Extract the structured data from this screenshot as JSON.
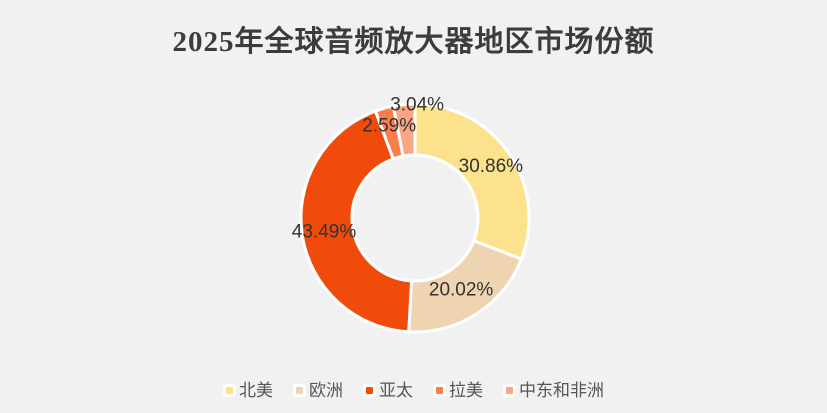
{
  "page": {
    "background": "#F1F1F1"
  },
  "header": {
    "title": "2025年全球音频放大器地区市场份额",
    "title_color": "#3C3C3C"
  },
  "chart_data": {
    "type": "pie",
    "variant": "donut",
    "title": "2025年全球音频放大器地区市场份额",
    "categories": [
      "北美",
      "欧洲",
      "亚太",
      "拉美",
      "中东和非洲"
    ],
    "values": [
      30.86,
      20.02,
      43.49,
      2.59,
      3.04
    ],
    "data_labels": [
      "30.86%",
      "20.02%",
      "43.49%",
      "2.59%",
      "3.04%"
    ],
    "colors": [
      "#FCE28C",
      "#EFD4B1",
      "#F04B0B",
      "#FA7D4A",
      "#F9A783"
    ],
    "unit": "%",
    "start_angle": "top",
    "direction": "clockwise",
    "legend_position": "bottom",
    "label_color": "#333333",
    "slice_border_color": "#FFFFFF",
    "background_color": "#F1F1F1"
  }
}
